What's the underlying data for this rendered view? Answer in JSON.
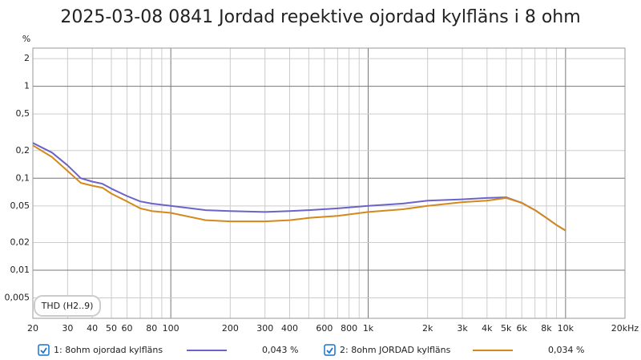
{
  "chart_data": {
    "type": "line",
    "title": "2025-03-08 0841 Jordad repektive ojordad kylfläns i 8 ohm",
    "y_label": "%",
    "annotation": "THD (H2..9)",
    "log_x": true,
    "log_y": true,
    "grid": true,
    "xlim": [
      20,
      20000
    ],
    "ylim": [
      0.003,
      2.6
    ],
    "xticks": [
      20,
      30,
      40,
      50,
      60,
      80,
      100,
      200,
      300,
      400,
      600,
      800,
      {
        "value": 1000,
        "label": "1k"
      },
      {
        "value": 2000,
        "label": "2k"
      },
      {
        "value": 3000,
        "label": "3k"
      },
      {
        "value": 4000,
        "label": "4k"
      },
      {
        "value": 5000,
        "label": "5k"
      },
      {
        "value": 6000,
        "label": "6k"
      },
      {
        "value": 8000,
        "label": "8k"
      },
      {
        "value": 10000,
        "label": "10k"
      },
      {
        "value": 20000,
        "label": "20kHz"
      }
    ],
    "xgrid_minor": [
      70,
      90,
      500,
      700,
      900,
      7000,
      9000
    ],
    "yticks": [
      {
        "value": 0.005,
        "label": "0,005"
      },
      {
        "value": 0.01,
        "label": "0,01"
      },
      {
        "value": 0.02,
        "label": "0,02"
      },
      {
        "value": 0.05,
        "label": "0,05"
      },
      {
        "value": 0.1,
        "label": "0,1"
      },
      {
        "value": 0.2,
        "label": "0,2"
      },
      {
        "value": 0.5,
        "label": "0,5"
      },
      1,
      2
    ],
    "x": [
      20,
      25,
      30,
      35,
      40,
      45,
      50,
      60,
      70,
      80,
      100,
      150,
      200,
      300,
      400,
      500,
      700,
      1000,
      1500,
      2000,
      3000,
      4000,
      5000,
      6000,
      7000,
      8000,
      9000,
      10000
    ],
    "series": [
      {
        "name": "1: 8ohm ojordad kylfläns",
        "color": "#6b63c8",
        "legend_value": "0,043 %",
        "values": [
          0.242,
          0.19,
          0.138,
          0.1,
          0.092,
          0.087,
          0.077,
          0.064,
          0.056,
          0.053,
          0.05,
          0.045,
          0.044,
          0.043,
          0.044,
          0.045,
          0.047,
          0.05,
          0.053,
          0.057,
          0.059,
          0.061,
          0.062,
          0.054,
          0.045,
          0.037,
          0.031,
          0.027
        ]
      },
      {
        "name": "2: 8ohm JORDAD kylfläns",
        "color": "#d4891a",
        "legend_value": "0,034 %",
        "values": [
          0.228,
          0.17,
          0.12,
          0.089,
          0.083,
          0.079,
          0.068,
          0.056,
          0.047,
          0.044,
          0.042,
          0.035,
          0.034,
          0.034,
          0.035,
          0.037,
          0.039,
          0.043,
          0.046,
          0.05,
          0.055,
          0.057,
          0.061,
          0.054,
          0.045,
          0.037,
          0.031,
          0.027
        ]
      }
    ]
  }
}
